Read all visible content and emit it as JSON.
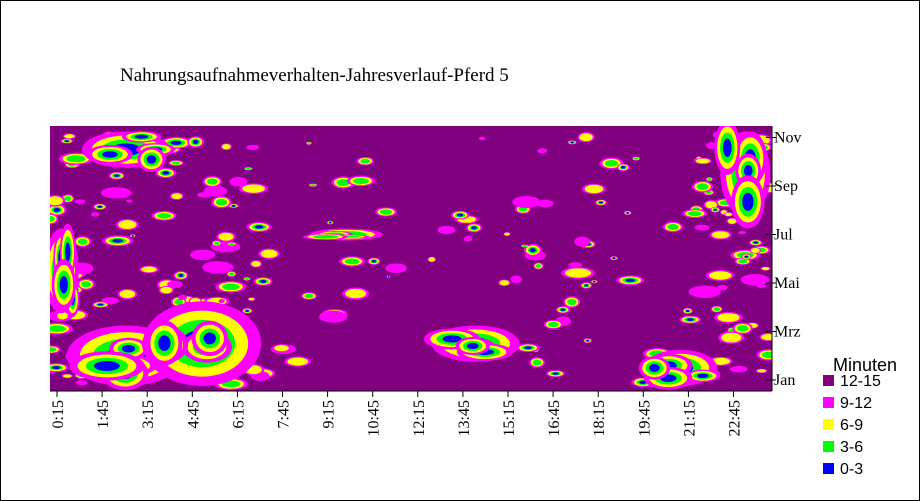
{
  "chart_data": {
    "type": "heatmap",
    "title": "Nahrungsaufnahmeverhalten-Jahresverlauf-Pferd 5",
    "xlabel": "",
    "ylabel": "",
    "x_ticks": [
      "0:15",
      "1:45",
      "3:15",
      "4:45",
      "6:15",
      "7:45",
      "9:15",
      "10:45",
      "12:15",
      "13:45",
      "15:15",
      "16:45",
      "18:15",
      "19:45",
      "21:15",
      "22:45"
    ],
    "y_ticks": [
      "Jan",
      "Mrz",
      "Mai",
      "Jul",
      "Sep",
      "Nov"
    ],
    "legend_title": "Minuten",
    "legend": [
      {
        "label": "12-15",
        "color": "#800080"
      },
      {
        "label": "9-12",
        "color": "#ff00ff"
      },
      {
        "label": "6-9",
        "color": "#ffff00"
      },
      {
        "label": "3-6",
        "color": "#00ff00"
      },
      {
        "label": "0-3",
        "color": "#0000ff"
      }
    ],
    "background_value_class": "12-15",
    "low_activity_regions": [
      {
        "time_start": "1:30",
        "time_end": "4:00",
        "month_start": "Okt",
        "month_end": "Nov",
        "class": "0-3"
      },
      {
        "time_start": "1:00",
        "time_end": "4:30",
        "month_start": "Jan",
        "month_end": "Mrz",
        "class": "0-3"
      },
      {
        "time_start": "3:30",
        "time_end": "7:00",
        "month_start": "Jan",
        "month_end": "Apr",
        "class": "0-3"
      },
      {
        "time_start": "0:15",
        "time_end": "1:00",
        "month_start": "Apr",
        "month_end": "Jul",
        "class": "0-3"
      },
      {
        "time_start": "22:30",
        "time_end": "23:45",
        "month_start": "Aug",
        "month_end": "Nov",
        "class": "0-3"
      },
      {
        "time_start": "9:00",
        "time_end": "11:00",
        "month_start": "Jul",
        "month_end": "Jul",
        "class": "3-6"
      },
      {
        "time_start": "13:00",
        "time_end": "15:30",
        "month_start": "Feb",
        "month_end": "Mrz",
        "class": "0-3"
      },
      {
        "time_start": "20:00",
        "time_end": "22:00",
        "month_start": "Jan",
        "month_end": "Feb",
        "class": "0-3"
      }
    ]
  }
}
